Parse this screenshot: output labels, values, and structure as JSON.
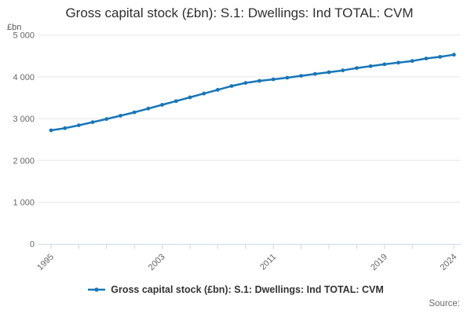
{
  "header": {
    "title": "Gross capital stock (£bn): S.1: Dwellings: Ind TOTAL: CVM"
  },
  "legend": {
    "label": "Gross capital stock (£bn): S.1: Dwellings: Ind TOTAL: CVM"
  },
  "footer": {
    "source_label": "Source:"
  },
  "chart_data": {
    "type": "line",
    "title": "Gross capital stock (£bn): S.1: Dwellings: Ind TOTAL: CVM",
    "unit_label": "£bn",
    "xlabel": "",
    "ylabel": "£bn",
    "ylim": [
      0,
      5000
    ],
    "grid": "horizontal-only",
    "legend_position": "bottom",
    "line_color": "#1776b8",
    "axis_color": "#ccd6eb",
    "grid_color": "#e6e6e6",
    "label_color": "#666666",
    "x": [
      1995,
      1996,
      1997,
      1998,
      1999,
      2000,
      2001,
      2002,
      2003,
      2004,
      2005,
      2006,
      2007,
      2008,
      2009,
      2010,
      2011,
      2012,
      2013,
      2014,
      2015,
      2016,
      2017,
      2018,
      2019,
      2020,
      2021,
      2022,
      2023,
      2024
    ],
    "series": [
      {
        "name": "Gross capital stock (£bn): S.1: Dwellings: Ind TOTAL: CVM",
        "color": "#1776b8",
        "values": [
          2720,
          2770,
          2840,
          2915,
          2990,
          3070,
          3150,
          3240,
          3330,
          3420,
          3510,
          3600,
          3690,
          3780,
          3855,
          3905,
          3940,
          3980,
          4025,
          4070,
          4110,
          4155,
          4210,
          4255,
          4300,
          4340,
          4380,
          4440,
          4480,
          4530
        ]
      }
    ],
    "yticks": [
      0,
      1000,
      2000,
      3000,
      4000,
      5000
    ],
    "ytick_labels": [
      "0",
      "1 000",
      "2 000",
      "3 000",
      "4 000",
      "5 000"
    ],
    "xticks": [
      1995,
      1997,
      1999,
      2001,
      2003,
      2005,
      2007,
      2009,
      2011,
      2013,
      2015,
      2017,
      2019,
      2021,
      2024
    ],
    "labeled_xticks": [
      1995,
      2003,
      2011,
      2019,
      2024
    ]
  }
}
